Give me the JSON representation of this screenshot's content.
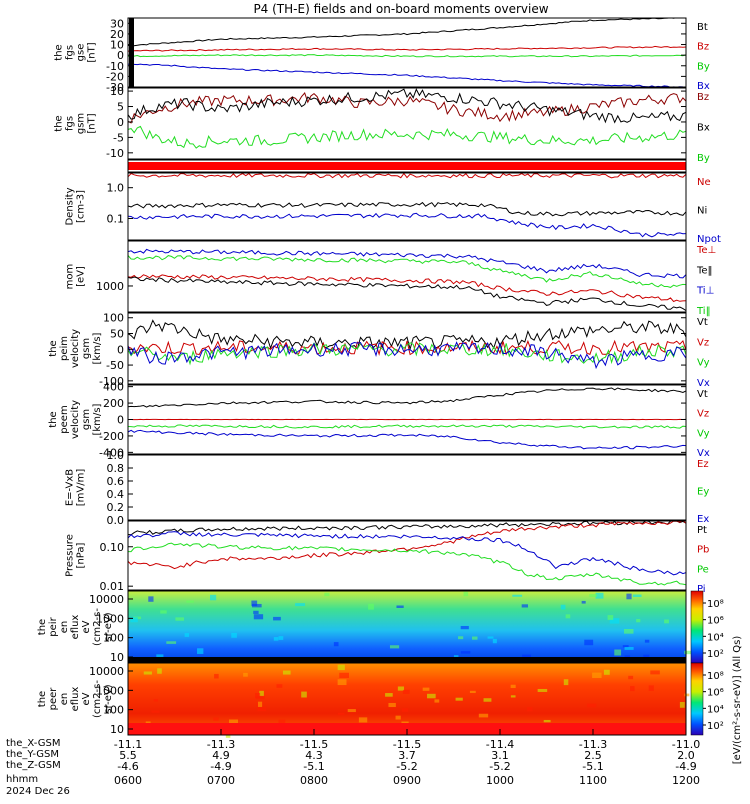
{
  "title": "P4 (TH-E) fields and on-board moments overview",
  "chart_data": [
    {
      "type": "line",
      "ylabel": [
        "the",
        "fgs",
        "gse",
        "[nT]"
      ],
      "yticks": [
        30,
        20,
        10,
        0,
        -10,
        -20,
        -30
      ],
      "ylim": [
        -30,
        35
      ],
      "series": [
        {
          "name": "Bt",
          "color": "#000000",
          "x": [
            0,
            0.5,
            1,
            2,
            3,
            4,
            5,
            5.5,
            6
          ],
          "y": [
            9,
            12,
            15,
            17,
            20,
            26,
            33,
            34,
            35
          ]
        },
        {
          "name": "Bz",
          "color": "#cc0000",
          "x": [
            0,
            1,
            2,
            3,
            4,
            5,
            6
          ],
          "y": [
            4,
            5,
            6,
            5,
            6,
            7,
            8
          ]
        },
        {
          "name": "By",
          "color": "#22dd22",
          "x": [
            0,
            1,
            2,
            3,
            4,
            5,
            6
          ],
          "y": [
            -1,
            0,
            0,
            -1,
            -1,
            -1,
            0
          ]
        },
        {
          "name": "Bx",
          "color": "#0000cc",
          "x": [
            0,
            0.5,
            1,
            2,
            3,
            4,
            5,
            5.5,
            6
          ],
          "y": [
            -8,
            -10,
            -13,
            -16,
            -19,
            -24,
            -28,
            -29,
            -30
          ]
        }
      ]
    },
    {
      "type": "line",
      "ylabel": [
        "the",
        "fgs",
        "gsm",
        "[nT]"
      ],
      "yticks": [
        10,
        5,
        0,
        -5,
        -10
      ],
      "ylim": [
        -12,
        11
      ],
      "series": [
        {
          "name": "Bz",
          "color": "#8b0000",
          "x": [
            0,
            0.3,
            0.6,
            1,
            1.5,
            2,
            2.5,
            3,
            3.5,
            4,
            4.5,
            5,
            5.5,
            6
          ],
          "y": [
            1,
            4,
            6,
            7,
            7,
            8,
            6,
            7,
            4,
            2,
            3,
            5,
            7,
            8
          ]
        },
        {
          "name": "Bx",
          "color": "#000000",
          "x": [
            0,
            0.3,
            0.6,
            1,
            1.5,
            2,
            2.5,
            3,
            3.5,
            4,
            4.5,
            5,
            5.5,
            6
          ],
          "y": [
            2,
            5,
            6,
            4,
            6,
            7,
            8,
            9,
            8,
            6,
            4,
            2,
            1,
            2
          ]
        },
        {
          "name": "By",
          "color": "#22dd22",
          "x": [
            0,
            0.3,
            0.6,
            1,
            1.5,
            2,
            2.5,
            3,
            3.5,
            4,
            4.5,
            5,
            5.5,
            6
          ],
          "y": [
            -1,
            -5,
            -7,
            -6,
            -6,
            -5,
            -4,
            -4,
            -4,
            -5,
            -6,
            -6,
            -5,
            -4
          ]
        }
      ]
    },
    {
      "type": "line",
      "ylabel": [
        "Density",
        "[cm-3]"
      ],
      "yticks_text": [
        "1.0",
        "0.1"
      ],
      "ylim_log": [
        0.02,
        3
      ],
      "series": [
        {
          "name": "Ne",
          "color": "#cc0000",
          "x": [
            0,
            6
          ],
          "y": [
            2.5,
            2.5
          ]
        },
        {
          "name": "Ni",
          "color": "#000000",
          "x": [
            0,
            1,
            2,
            3,
            3.8,
            4.2,
            4.6,
            5,
            5.5,
            6
          ],
          "y": [
            0.25,
            0.28,
            0.27,
            0.29,
            0.28,
            0.15,
            0.14,
            0.15,
            0.16,
            0.15
          ]
        },
        {
          "name": "Npot",
          "color": "#0000cc",
          "x": [
            0,
            1,
            2,
            3,
            3.8,
            4.2,
            4.6,
            5,
            5.5,
            6
          ],
          "y": [
            0.11,
            0.12,
            0.12,
            0.13,
            0.12,
            0.07,
            0.05,
            0.06,
            0.03,
            0.03
          ]
        }
      ]
    },
    {
      "type": "line",
      "ylabel": [
        "mom",
        "[eV]"
      ],
      "yticks_text": [
        "1000"
      ],
      "ylim_log": [
        300,
        8000
      ],
      "series": [
        {
          "name": "Te⊥",
          "color": "#cc0000",
          "x": [
            0,
            1,
            2,
            3,
            3.6,
            4,
            4.5,
            5,
            5.5,
            6
          ],
          "y": [
            1600,
            1500,
            1400,
            1300,
            1200,
            900,
            700,
            800,
            600,
            500
          ]
        },
        {
          "name": "Te‖",
          "color": "#000000",
          "x": [
            0,
            1,
            2,
            3,
            3.6,
            4,
            4.5,
            5,
            5.5,
            6
          ],
          "y": [
            1400,
            1200,
            1100,
            1000,
            950,
            600,
            450,
            550,
            400,
            350
          ]
        },
        {
          "name": "Ti⊥",
          "color": "#0000cc",
          "x": [
            0,
            1,
            2,
            3,
            3.6,
            4,
            4.5,
            5,
            5.5,
            6
          ],
          "y": [
            5000,
            4800,
            4500,
            4200,
            4000,
            3000,
            2000,
            2600,
            1700,
            1600
          ]
        },
        {
          "name": "Ti‖",
          "color": "#22dd22",
          "x": [
            0,
            1,
            2,
            3,
            3.6,
            4,
            4.5,
            5,
            5.5,
            6
          ],
          "y": [
            3800,
            3600,
            3400,
            3200,
            3000,
            2000,
            1300,
            1800,
            1100,
            1000
          ]
        }
      ]
    },
    {
      "type": "line",
      "ylabel": [
        "the",
        "peim",
        "velocity",
        "gsm",
        "[km/s]"
      ],
      "yticks": [
        100,
        50,
        0,
        -50,
        -100
      ],
      "ylim": [
        -110,
        115
      ],
      "series": [
        {
          "name": "Vt",
          "color": "#000000",
          "x": [
            0,
            0.3,
            0.6,
            1,
            2,
            3,
            4,
            4.5,
            5,
            5.5,
            6
          ],
          "y": [
            40,
            80,
            60,
            30,
            20,
            20,
            25,
            50,
            60,
            70,
            60
          ]
        },
        {
          "name": "Vz",
          "color": "#cc0000",
          "x": [
            0,
            6
          ],
          "y": [
            5,
            5
          ]
        },
        {
          "name": "Vy",
          "color": "#22dd22",
          "x": [
            0,
            0.3,
            0.6,
            1,
            2,
            3,
            4,
            4.5,
            5,
            5.5,
            6
          ],
          "y": [
            0,
            -20,
            -30,
            -10,
            0,
            0,
            0,
            -20,
            -30,
            -10,
            0
          ]
        },
        {
          "name": "Vx",
          "color": "#0000cc",
          "x": [
            0,
            0.3,
            0.6,
            1,
            2,
            3,
            4,
            4.5,
            5,
            5.5,
            6
          ],
          "y": [
            0,
            -30,
            -20,
            -10,
            0,
            0,
            0,
            -10,
            -40,
            -20,
            -10
          ]
        }
      ]
    },
    {
      "type": "line",
      "ylabel": [
        "the",
        "peem",
        "velocity",
        "gsm",
        "[km/s]"
      ],
      "yticks": [
        400,
        200,
        0,
        -200,
        -400
      ],
      "ylim": [
        -420,
        420
      ],
      "series": [
        {
          "name": "Vt",
          "color": "#000000",
          "x": [
            0,
            1,
            2,
            3,
            3.5,
            4,
            4.5,
            5,
            5.5,
            6
          ],
          "y": [
            150,
            200,
            220,
            200,
            230,
            300,
            350,
            380,
            360,
            340
          ]
        },
        {
          "name": "Vz",
          "color": "#cc0000",
          "x": [
            0,
            6
          ],
          "y": [
            0,
            0
          ]
        },
        {
          "name": "Vy",
          "color": "#22dd22",
          "x": [
            0,
            1,
            2,
            3,
            4,
            5,
            6
          ],
          "y": [
            -80,
            -80,
            -90,
            -80,
            -80,
            -90,
            -90
          ]
        },
        {
          "name": "Vx",
          "color": "#0000cc",
          "x": [
            0,
            1,
            2,
            3,
            3.5,
            4,
            4.5,
            5,
            5.5,
            6
          ],
          "y": [
            -140,
            -180,
            -200,
            -190,
            -210,
            -280,
            -320,
            -350,
            -340,
            -320
          ]
        }
      ]
    },
    {
      "type": "line",
      "ylabel": [
        "E=-VxB",
        "[mV/m]"
      ],
      "yticks_text": [
        "1.0",
        "0.8",
        "0.6",
        "0.4",
        "0.2",
        "0.0"
      ],
      "ylim": [
        0,
        1
      ],
      "series": [
        {
          "name": "Ez",
          "color": "#cc0000",
          "x": [],
          "y": []
        },
        {
          "name": "Ey",
          "color": "#22dd22",
          "x": [],
          "y": []
        },
        {
          "name": "Ex",
          "color": "#0000cc",
          "x": [],
          "y": []
        }
      ]
    },
    {
      "type": "line",
      "ylabel": [
        "Pressure",
        "[nPa]"
      ],
      "yticks_text": [
        "0.10",
        "0.01"
      ],
      "ylim_log": [
        0.008,
        0.45
      ],
      "series": [
        {
          "name": "Pt",
          "color": "#000000",
          "x": [
            0,
            1,
            2,
            3,
            3.5,
            4,
            4.5,
            5,
            5.5,
            6
          ],
          "y": [
            0.22,
            0.28,
            0.3,
            0.32,
            0.33,
            0.36,
            0.38,
            0.4,
            0.42,
            0.42
          ]
        },
        {
          "name": "Pb",
          "color": "#cc0000",
          "x": [
            0,
            0.5,
            1,
            1.5,
            2,
            2.5,
            3,
            3.4,
            3.8,
            4.2,
            4.6,
            5,
            5.5,
            6
          ],
          "y": [
            0.04,
            0.03,
            0.05,
            0.05,
            0.06,
            0.07,
            0.09,
            0.12,
            0.2,
            0.28,
            0.32,
            0.36,
            0.4,
            0.42
          ]
        },
        {
          "name": "Pe",
          "color": "#22dd22",
          "x": [
            0,
            0.5,
            1,
            2,
            3,
            3.5,
            4,
            4.3,
            4.6,
            5,
            5.5,
            6
          ],
          "y": [
            0.08,
            0.12,
            0.1,
            0.09,
            0.08,
            0.07,
            0.04,
            0.02,
            0.015,
            0.02,
            0.012,
            0.012
          ]
        },
        {
          "name": "Pi",
          "color": "#0000cc",
          "x": [
            0,
            0.5,
            1,
            2,
            3,
            3.5,
            4,
            4.3,
            4.6,
            5,
            5.5,
            6
          ],
          "y": [
            0.18,
            0.22,
            0.2,
            0.19,
            0.18,
            0.17,
            0.15,
            0.08,
            0.03,
            0.05,
            0.025,
            0.02
          ]
        }
      ]
    },
    {
      "type": "heatmap",
      "ylabel": [
        "the",
        "peir",
        "en",
        "eflux",
        "eV",
        "(cm2-s-",
        "sr-eV)"
      ],
      "yticks_text": [
        "10000",
        "1000",
        "100",
        "10"
      ]
    },
    {
      "type": "heatmap",
      "ylabel": [
        "the",
        "peer",
        "en",
        "eflux",
        "eV",
        "(cm2-s-",
        "sr-eV)"
      ],
      "yticks_text": [
        "10000",
        "1000",
        "100",
        "10"
      ]
    }
  ],
  "colorbars": [
    {
      "ticks": [
        "10⁸",
        "10⁶",
        "10⁴",
        "10²"
      ]
    },
    {
      "ticks": [
        "10⁸",
        "10⁶",
        "10⁴",
        "10²"
      ]
    }
  ],
  "colorbar_label": "[eV/(cm²-s-sr-eV)] (All Qs)",
  "xaxis": {
    "row_labels": [
      "the_X-GSM",
      "the_Y-GSM",
      "the_Z-GSM",
      "hhmm",
      "2024 Dec 26"
    ],
    "ticks": [
      {
        "x": "-11.1",
        "y": "5.5",
        "z": "-4.6",
        "t": "0600"
      },
      {
        "x": "-11.3",
        "y": "4.9",
        "z": "-4.9",
        "t": "0700"
      },
      {
        "x": "-11.5",
        "y": "4.3",
        "z": "-5.1",
        "t": "0800"
      },
      {
        "x": "-11.5",
        "y": "3.7",
        "z": "-5.2",
        "t": "0900"
      },
      {
        "x": "-11.4",
        "y": "3.1",
        "z": "-5.2",
        "t": "1000"
      },
      {
        "x": "-11.3",
        "y": "2.5",
        "z": "-5.1",
        "t": "1100"
      },
      {
        "x": "-11.0",
        "y": "2.0",
        "z": "-4.9",
        "t": "1200"
      }
    ]
  }
}
